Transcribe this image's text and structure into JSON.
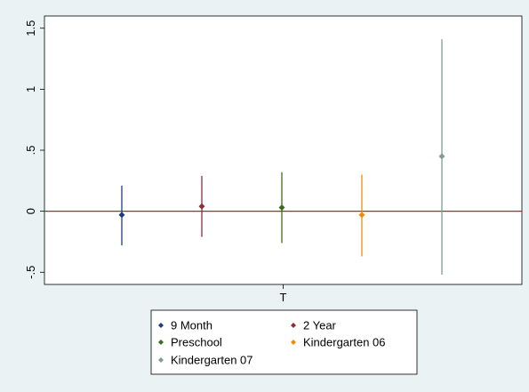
{
  "chart_data": {
    "type": "scatter",
    "title": "",
    "xlabel": "",
    "ylabel": "",
    "x_categories": [
      "T"
    ],
    "ylim": [
      -0.6,
      1.6
    ],
    "yticks": [
      -0.5,
      0,
      0.5,
      1,
      1.5
    ],
    "ytick_labels": [
      "-.5",
      "0",
      ".5",
      "1",
      "1.5"
    ],
    "reference_line": {
      "y": 0,
      "color": "#b22234"
    },
    "grid": false,
    "legend": {
      "position": "bottom",
      "columns": 2
    },
    "series": [
      {
        "name": "9 Month",
        "color": "#1f3d7a",
        "estimate": -0.03,
        "lower": -0.28,
        "upper": 0.21
      },
      {
        "name": "2 Year",
        "color": "#8b2f3b",
        "estimate": 0.04,
        "lower": -0.21,
        "upper": 0.29
      },
      {
        "name": "Preschool",
        "color": "#3b6e1c",
        "estimate": 0.03,
        "lower": -0.26,
        "upper": 0.32
      },
      {
        "name": "Kindergarten 06",
        "color": "#f08a0b",
        "estimate": -0.03,
        "lower": -0.37,
        "upper": 0.3
      },
      {
        "name": "Kindergarten 07",
        "color": "#7e9e92",
        "estimate": 0.45,
        "lower": -0.52,
        "upper": 1.41
      }
    ]
  }
}
